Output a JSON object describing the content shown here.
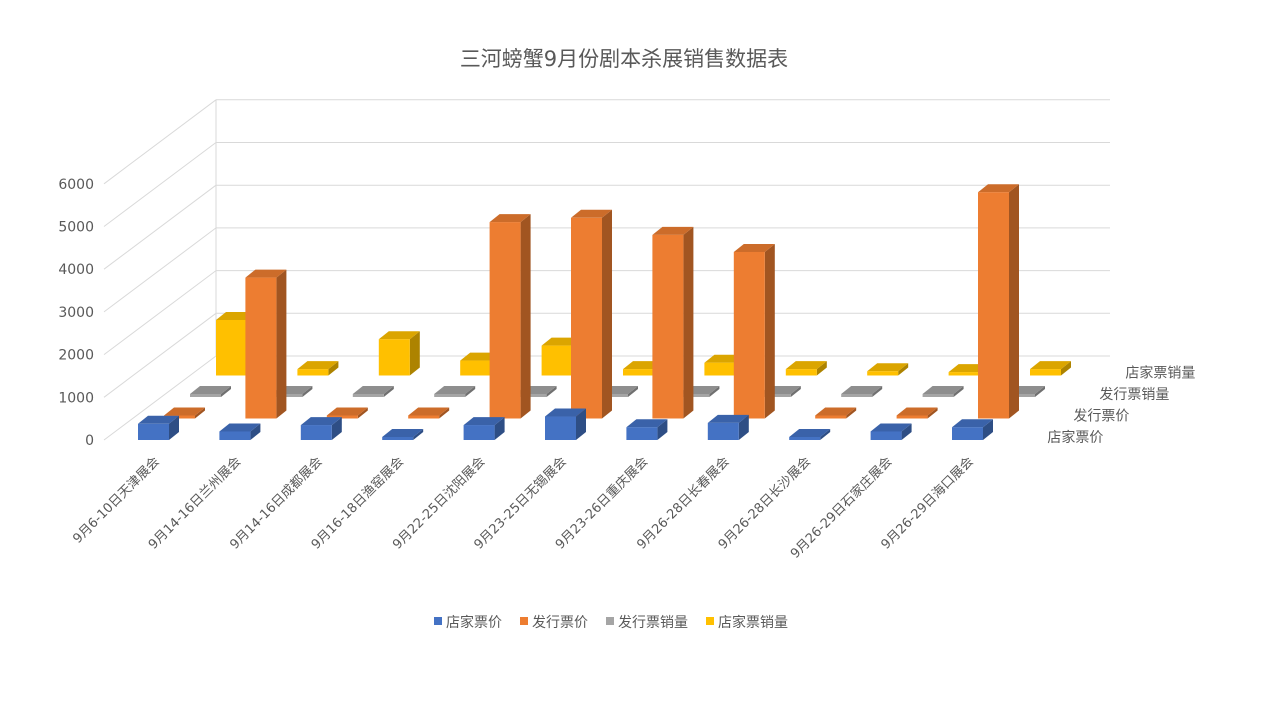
{
  "chart_data": {
    "type": "bar",
    "variant": "3d-column",
    "title": "三河螃蟹9月份剧本杀展销售数据表",
    "categories": [
      "9月6-10日天津展会",
      "9月14-16日兰州展会",
      "9月14-16日成都展会",
      "9月16-18日渔窑展会",
      "9月22-25日沈阳展会",
      "9月23-25日无锡展会",
      "9月23-26日重庆展会",
      "9月26-28日长春展会",
      "9月26-28日长沙展会",
      "9月26-29日石家庄展会",
      "9月26-29日海口展会"
    ],
    "series": [
      {
        "name": "店家票价",
        "color": "#4472C4",
        "values": [
          380,
          200,
          350,
          20,
          350,
          550,
          300,
          400,
          40,
          200,
          300
        ]
      },
      {
        "name": "发行票价",
        "color": "#ED7D31",
        "values": [
          0,
          3300,
          0,
          0,
          4600,
          4700,
          4300,
          3900,
          0,
          0,
          5300
        ]
      },
      {
        "name": "发行票销量",
        "color": "#A5A5A5",
        "values": [
          0,
          0,
          0,
          0,
          0,
          0,
          0,
          0,
          0,
          0,
          0
        ]
      },
      {
        "name": "店家票销量",
        "color": "#FFC000",
        "values": [
          1300,
          150,
          850,
          350,
          700,
          150,
          300,
          150,
          100,
          80,
          150
        ]
      }
    ],
    "yticks": [
      0,
      1000,
      2000,
      3000,
      4000,
      5000,
      6000
    ],
    "ylim": [
      0,
      6000
    ],
    "legend_position": "bottom",
    "grid": true
  }
}
